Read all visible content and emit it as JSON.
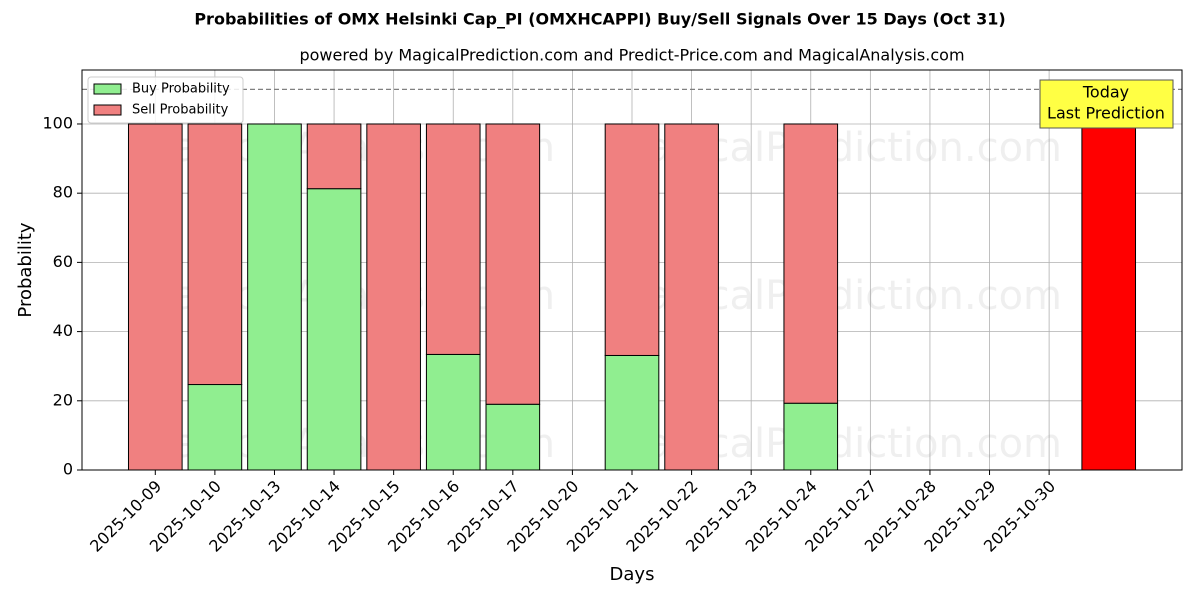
{
  "chart_data": {
    "type": "stacked_bar",
    "title": "Probabilities of OMX Helsinki Cap_PI (OMXHCAPPI) Buy/Sell Signals Over 15 Days (Oct 31)",
    "subtitle": "powered by MagicalPrediction.com and Predict-Price.com and MagicalAnalysis.com",
    "xlabel": "Days",
    "ylabel": "Probability",
    "categories": [
      "2025-10-09",
      "2025-10-10",
      "2025-10-13",
      "2025-10-14",
      "2025-10-15",
      "2025-10-16",
      "2025-10-17",
      "2025-10-20",
      "2025-10-21",
      "2025-10-22",
      "2025-10-23",
      "2025-10-24",
      "2025-10-27",
      "2025-10-28",
      "2025-10-29",
      "2025-10-30",
      null
    ],
    "series": [
      {
        "name": "Buy Probability",
        "color": "#90ee90",
        "values": [
          0,
          24.7,
          100,
          81.3,
          0,
          33.4,
          19,
          null,
          33.1,
          0,
          null,
          19.3,
          null,
          null,
          null,
          null,
          0
        ]
      },
      {
        "name": "Sell Probability",
        "color": "#f08080",
        "values": [
          100,
          75.3,
          0,
          18.7,
          100,
          66.6,
          81,
          null,
          66.9,
          100,
          null,
          80.7,
          null,
          null,
          null,
          null,
          100
        ]
      }
    ],
    "today_color": "#ff0000",
    "annotation": [
      "Today",
      "Last Prediction"
    ],
    "reference_line": 110,
    "watermarks": [
      "MagicalAnalysis.com",
      "MagicalPrediction.com"
    ],
    "ylim": [
      0,
      115.6
    ],
    "yticks": [
      0,
      20,
      40,
      60,
      80,
      100
    ],
    "grid": true,
    "legend": "upper-left"
  }
}
